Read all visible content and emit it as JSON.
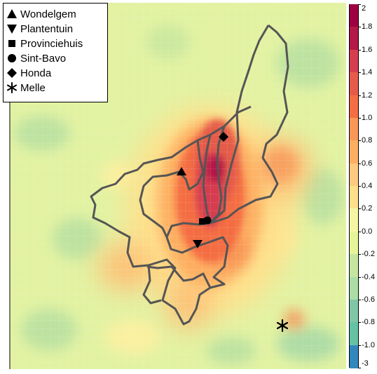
{
  "legend": {
    "items": [
      {
        "symbol": "triangle-up-icon",
        "label": "Wondelgem"
      },
      {
        "symbol": "triangle-down-icon",
        "label": "Plantentuin"
      },
      {
        "symbol": "square-icon",
        "label": "Provinciehuis"
      },
      {
        "symbol": "circle-icon",
        "label": "Sint-Bavo"
      },
      {
        "symbol": "diamond-icon",
        "label": "Honda"
      },
      {
        "symbol": "asterisk-icon",
        "label": "Melle"
      }
    ]
  },
  "color_scale": {
    "ticks": [
      "2",
      "1.8",
      "1.6",
      "1.4",
      "1.2",
      "1.0",
      "0.8",
      "0.6",
      "0.4",
      "0.2",
      "0.0",
      "-0.2",
      "-0.4",
      "-0.6",
      "-0.8",
      "-1.0",
      "-3"
    ],
    "colors": [
      "#9e0142",
      "#b41846",
      "#d53e4f",
      "#e45c49",
      "#f46d43",
      "#f99856",
      "#fdae61",
      "#fec980",
      "#fee08b",
      "#f4f6a4",
      "#e6f598",
      "#c4e6a0",
      "#abdda4",
      "#7fc6a6",
      "#66c2a5",
      "#3288bd",
      "#5e4fa2"
    ]
  }
}
